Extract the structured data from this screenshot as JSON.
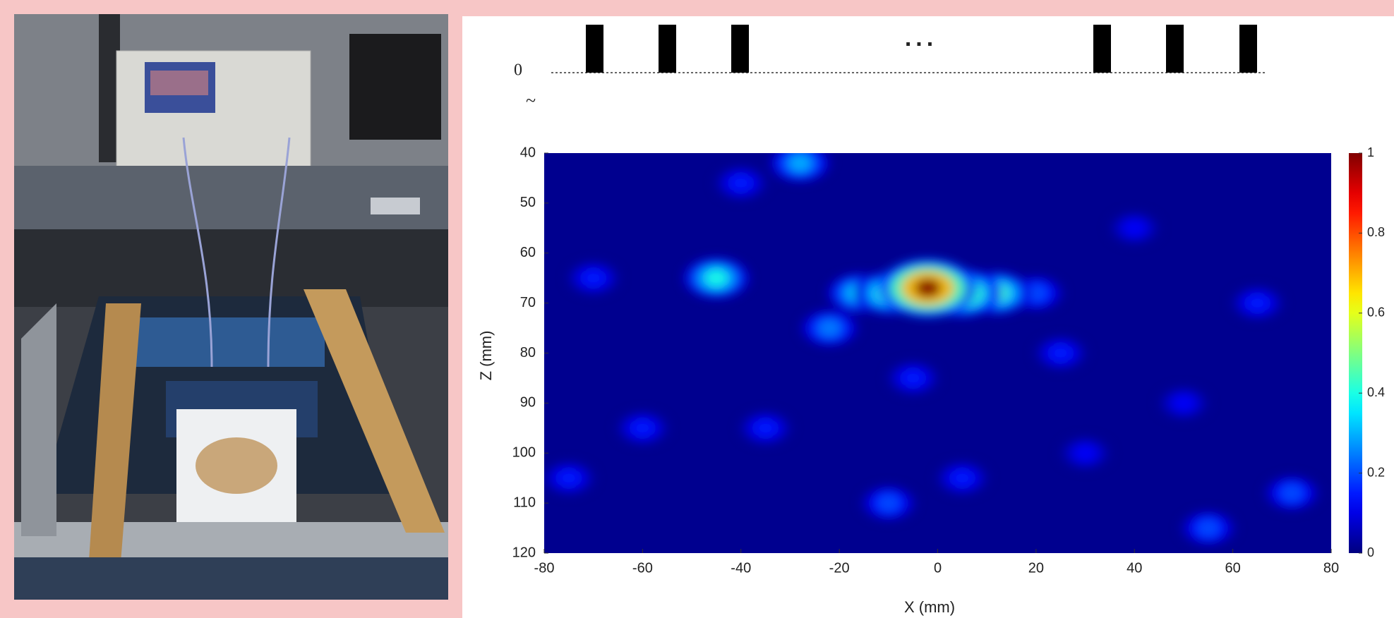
{
  "chart_data": {
    "type": "heatmap",
    "colormap": "jet",
    "xlabel": "X (mm)",
    "ylabel": "Z (mm)",
    "xlim": [
      -80,
      80
    ],
    "xticks": [
      -80,
      -60,
      -40,
      -20,
      0,
      20,
      40,
      60,
      80
    ],
    "ylim": [
      40,
      120
    ],
    "y_inverted": true,
    "yticks": [
      40,
      50,
      60,
      70,
      80,
      90,
      100,
      110,
      120
    ],
    "clim": [
      0,
      1
    ],
    "cticks": [
      0,
      0.2,
      0.4,
      0.6,
      0.8,
      1
    ],
    "x": [
      -40,
      -70,
      -60,
      -75,
      -35,
      -5,
      5,
      25,
      30,
      40,
      50,
      65,
      -10,
      55,
      72,
      -22,
      -28,
      20,
      -45,
      -16,
      -10,
      12,
      5,
      -2
    ],
    "y": [
      46,
      65,
      95,
      105,
      95,
      85,
      105,
      80,
      100,
      55,
      90,
      70,
      110,
      115,
      108,
      75,
      42,
      68,
      65,
      68,
      68,
      68,
      68,
      67
    ],
    "values": [
      0.15,
      0.15,
      0.15,
      0.15,
      0.15,
      0.15,
      0.15,
      0.15,
      0.12,
      0.12,
      0.12,
      0.15,
      0.2,
      0.2,
      0.2,
      0.25,
      0.3,
      0.2,
      0.4,
      0.35,
      0.45,
      0.45,
      0.6,
      1
    ],
    "pulse_diagram": {
      "zero_label": "0",
      "break_mark": "~",
      "ellipsis": "..."
    }
  }
}
